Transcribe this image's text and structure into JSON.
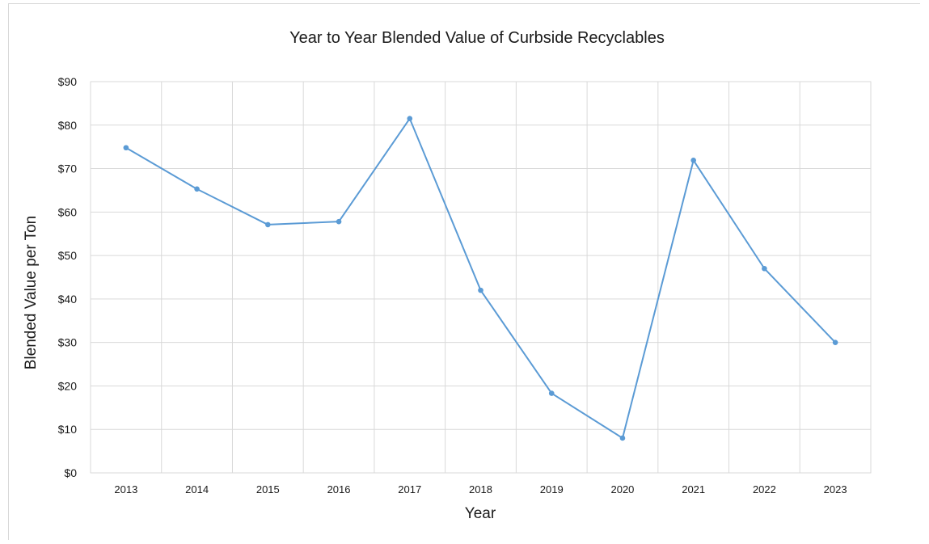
{
  "chart_data": {
    "type": "line",
    "title": "Year to Year Blended Value of Curbside Recyclables",
    "xlabel": "Year",
    "ylabel": "Blended Value per Ton",
    "categories": [
      "2013",
      "2014",
      "2015",
      "2016",
      "2017",
      "2018",
      "2019",
      "2020",
      "2021",
      "2022",
      "2023"
    ],
    "series": [
      {
        "values": [
          74.8,
          65.3,
          57.1,
          57.8,
          81.5,
          42.0,
          18.3,
          8.0,
          71.9,
          47.0,
          30.0
        ],
        "color": "#5b9bd5"
      }
    ],
    "ylim": [
      0,
      90
    ],
    "yticks": [
      0,
      10,
      20,
      30,
      40,
      50,
      60,
      70,
      80,
      90
    ],
    "ytick_labels": [
      "$0",
      "$10",
      "$20",
      "$30",
      "$40",
      "$50",
      "$60",
      "$70",
      "$80",
      "$90"
    ],
    "grid": true,
    "legend": false,
    "markers": true
  }
}
